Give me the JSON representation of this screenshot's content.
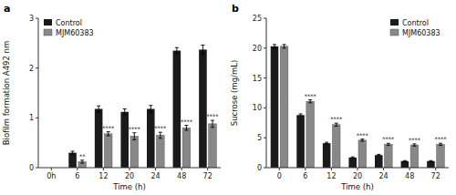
{
  "chart_data": [
    {
      "type": "bar",
      "title": "a",
      "xlabel": "Time (h)",
      "ylabel": "Biofilm formation A492 nm",
      "categories": [
        "0h",
        "6",
        "12",
        "20",
        "24",
        "48",
        "72"
      ],
      "series": [
        {
          "name": "Control",
          "color": "#1a1a1a",
          "values": [
            0.0,
            0.3,
            1.18,
            1.12,
            1.18,
            2.35,
            2.37
          ],
          "error": [
            0.0,
            0.03,
            0.06,
            0.06,
            0.07,
            0.06,
            0.09
          ]
        },
        {
          "name": "MJM60383",
          "color": "#888888",
          "values": [
            0.0,
            0.12,
            0.68,
            0.63,
            0.65,
            0.8,
            0.88
          ],
          "error": [
            0.0,
            0.03,
            0.04,
            0.07,
            0.06,
            0.05,
            0.07
          ],
          "significance": [
            null,
            "**",
            "****",
            "****",
            "****",
            "****",
            "****"
          ]
        }
      ],
      "ylim": [
        0,
        3.0
      ],
      "yticks": [
        0,
        1,
        2,
        3
      ],
      "grid": false,
      "legend": "upper left"
    },
    {
      "type": "bar",
      "title": "b",
      "xlabel": "Time (h)",
      "ylabel": "Sucrose (mg/mL)",
      "categories": [
        "0",
        "6",
        "12",
        "20",
        "24",
        "48",
        "72"
      ],
      "series": [
        {
          "name": "Control",
          "color": "#1a1a1a",
          "values": [
            20.3,
            8.8,
            4.1,
            1.7,
            2.1,
            1.1,
            1.1
          ],
          "error": [
            0.3,
            0.2,
            0.15,
            0.1,
            0.12,
            0.08,
            0.08
          ]
        },
        {
          "name": "MJM60383",
          "color": "#888888",
          "values": [
            20.3,
            11.1,
            7.2,
            4.6,
            3.9,
            3.8,
            3.9
          ],
          "error": [
            0.3,
            0.25,
            0.25,
            0.18,
            0.18,
            0.18,
            0.18
          ],
          "significance": [
            null,
            "****",
            "****",
            "****",
            "****",
            "****",
            "****"
          ]
        }
      ],
      "ylim": [
        0,
        25
      ],
      "yticks": [
        0,
        5,
        10,
        15,
        20,
        25
      ],
      "grid": false,
      "legend": "upper right"
    }
  ]
}
